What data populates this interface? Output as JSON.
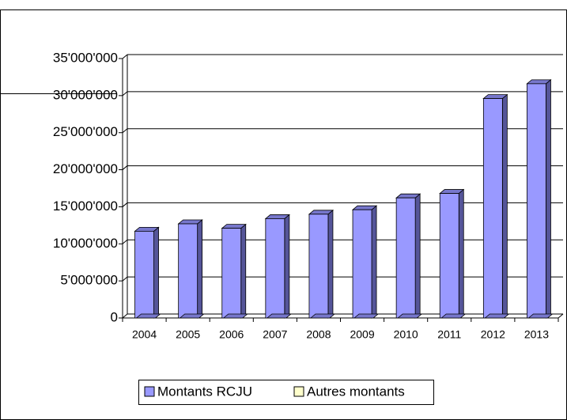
{
  "chart_data": {
    "type": "bar",
    "categories": [
      "2004",
      "2005",
      "2006",
      "2007",
      "2008",
      "2009",
      "2010",
      "2011",
      "2012",
      "2013"
    ],
    "series": [
      {
        "name": "Montants RCJU",
        "color": "#9999ff",
        "values": [
          11700000,
          12700000,
          12100000,
          13400000,
          14000000,
          14600000,
          16200000,
          16800000,
          29600000,
          31600000
        ]
      },
      {
        "name": "Autres montants",
        "color": "#ffffcc",
        "values": [
          0,
          0,
          0,
          0,
          0,
          0,
          0,
          0,
          0,
          0
        ]
      }
    ],
    "ylim": [
      0,
      35000000
    ],
    "yticks": [
      {
        "value": 0,
        "label": "0"
      },
      {
        "value": 5000000,
        "label": "5'000'000"
      },
      {
        "value": 10000000,
        "label": "10'000'000"
      },
      {
        "value": 15000000,
        "label": "15'000'000"
      },
      {
        "value": 20000000,
        "label": "20'000'000"
      },
      {
        "value": 25000000,
        "label": "25'000'000"
      },
      {
        "value": 30000000,
        "label": "30'000'000"
      },
      {
        "value": 35000000,
        "label": "35'000'000"
      }
    ],
    "grid": true,
    "legend": "bottom"
  }
}
